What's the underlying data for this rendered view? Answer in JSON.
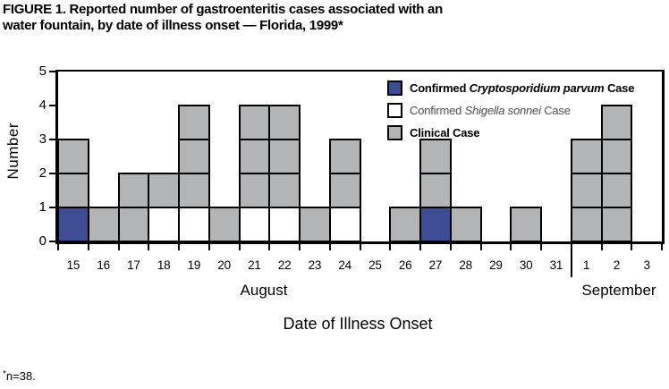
{
  "figure": {
    "title_line1": "FIGURE 1. Reported number of gastroenteritis cases associated with an",
    "title_line2": "water fountain, by date of illness onset — Florida, 1999*",
    "footnote_mark": "*",
    "footnote_text": "n=38."
  },
  "colors": {
    "crypto": "#3E4C93",
    "shigella": "#FFFFFF",
    "clinical": "#B3B4B6",
    "border": "#000000",
    "shigella_text": "#4B4B4B"
  },
  "legend": {
    "items": [
      {
        "key": "crypto",
        "prefix": "Confirmed ",
        "species": "Cryptosporidium parvum",
        "suffix": " Case",
        "bold": true
      },
      {
        "key": "shigella",
        "prefix": "Confirmed ",
        "species": "Shigella sonnei",
        "suffix": " Case",
        "bold": false
      },
      {
        "key": "clinical",
        "prefix": "Clinical Case",
        "species": "",
        "suffix": "",
        "bold": true
      }
    ]
  },
  "chart_data": {
    "type": "bar",
    "subtype": "stacked-unit-square-epi-curve",
    "title": "FIGURE 1. Reported number of gastroenteritis cases associated with an water fountain, by date of illness onset — Florida, 1999*",
    "xlabel": "Date of Illness Onset",
    "ylabel": "Number",
    "ylim": [
      0,
      5
    ],
    "y_ticks": [
      0,
      1,
      2,
      3,
      4,
      5
    ],
    "grid": false,
    "legend_position": "top-right-inside",
    "case_types": {
      "crypto": "Confirmed Cryptosporidium parvum Case",
      "shigella": "Confirmed Shigella sonnei Case",
      "clinical": "Clinical Case"
    },
    "months": [
      {
        "label": "August",
        "dates": [
          "15",
          "16",
          "17",
          "18",
          "19",
          "20",
          "21",
          "22",
          "23",
          "24",
          "25",
          "26",
          "27",
          "28",
          "29",
          "30",
          "31"
        ]
      },
      {
        "label": "September",
        "dates": [
          "1",
          "2",
          "3"
        ]
      }
    ],
    "columns": [
      {
        "month": "August",
        "date": "15",
        "total": 3,
        "stack": [
          "crypto",
          "clinical",
          "clinical"
        ]
      },
      {
        "month": "August",
        "date": "16",
        "total": 1,
        "stack": [
          "clinical"
        ]
      },
      {
        "month": "August",
        "date": "17",
        "total": 2,
        "stack": [
          "clinical",
          "clinical"
        ]
      },
      {
        "month": "August",
        "date": "18",
        "total": 2,
        "stack": [
          "shigella",
          "clinical"
        ]
      },
      {
        "month": "August",
        "date": "19",
        "total": 4,
        "stack": [
          "shigella",
          "clinical",
          "clinical",
          "clinical"
        ]
      },
      {
        "month": "August",
        "date": "20",
        "total": 1,
        "stack": [
          "clinical"
        ]
      },
      {
        "month": "August",
        "date": "21",
        "total": 4,
        "stack": [
          "shigella",
          "clinical",
          "clinical",
          "clinical"
        ]
      },
      {
        "month": "August",
        "date": "22",
        "total": 4,
        "stack": [
          "shigella",
          "clinical",
          "clinical",
          "clinical"
        ]
      },
      {
        "month": "August",
        "date": "23",
        "total": 1,
        "stack": [
          "clinical"
        ]
      },
      {
        "month": "August",
        "date": "24",
        "total": 3,
        "stack": [
          "shigella",
          "clinical",
          "clinical"
        ]
      },
      {
        "month": "August",
        "date": "25",
        "total": 0,
        "stack": []
      },
      {
        "month": "August",
        "date": "26",
        "total": 1,
        "stack": [
          "clinical"
        ]
      },
      {
        "month": "August",
        "date": "27",
        "total": 3,
        "stack": [
          "crypto",
          "clinical",
          "clinical"
        ]
      },
      {
        "month": "August",
        "date": "28",
        "total": 1,
        "stack": [
          "clinical"
        ]
      },
      {
        "month": "August",
        "date": "29",
        "total": 0,
        "stack": []
      },
      {
        "month": "August",
        "date": "30",
        "total": 1,
        "stack": [
          "clinical"
        ]
      },
      {
        "month": "August",
        "date": "31",
        "total": 0,
        "stack": []
      },
      {
        "month": "September",
        "date": "1",
        "total": 3,
        "stack": [
          "clinical",
          "clinical",
          "clinical"
        ]
      },
      {
        "month": "September",
        "date": "2",
        "total": 4,
        "stack": [
          "clinical",
          "clinical",
          "clinical",
          "clinical"
        ]
      },
      {
        "month": "September",
        "date": "3",
        "total": 0,
        "stack": []
      }
    ],
    "total_cases": 38
  }
}
